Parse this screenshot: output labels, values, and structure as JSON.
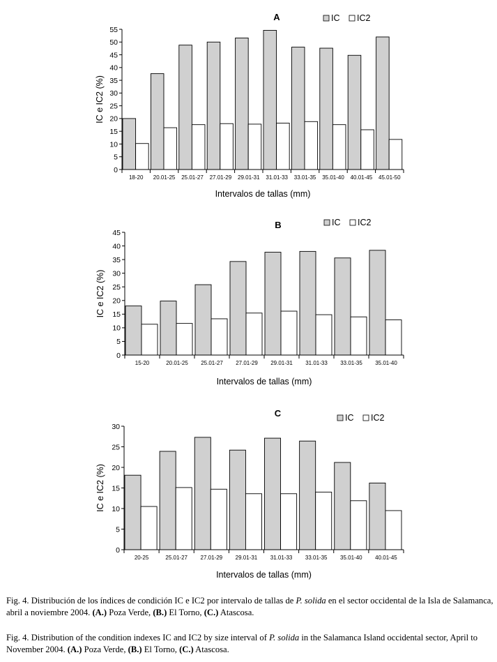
{
  "chart_data": [
    {
      "type": "bar",
      "title": "A",
      "xlabel": "Intervalos de tallas (mm)",
      "ylabel": "IC e IC2 (%)",
      "ylim": [
        0,
        55
      ],
      "ytick_step": 5,
      "grid": false,
      "legend": "top-right",
      "categories": [
        "18-20",
        "20.01-25",
        "25.01-27",
        "27.01-29",
        "29.01-31",
        "31.01-33",
        "33.01-35",
        "35.01-40",
        "40.01-45",
        "45.01-50"
      ],
      "series": [
        {
          "name": "IC",
          "color": "#d0d0d0",
          "values": [
            20,
            37.6,
            48.8,
            50,
            51.6,
            54.6,
            48,
            47.6,
            44.8,
            52
          ]
        },
        {
          "name": "IC2",
          "color": "#ffffff",
          "values": [
            10.2,
            16.4,
            17.6,
            18,
            17.8,
            18.2,
            18.8,
            17.6,
            15.6,
            11.8
          ]
        }
      ]
    },
    {
      "type": "bar",
      "title": "B",
      "xlabel": "Intervalos de tallas (mm)",
      "ylabel": "IC e IC2 (%)",
      "ylim": [
        0,
        45
      ],
      "ytick_step": 5,
      "grid": false,
      "legend": "top-right",
      "categories": [
        "15-20",
        "20.01-25",
        "25.01-27",
        "27.01-29",
        "29.01-31",
        "31.01-33",
        "33.01-35",
        "35.01-40"
      ],
      "series": [
        {
          "name": "IC",
          "color": "#d0d0d0",
          "values": [
            18,
            19.8,
            25.8,
            34.3,
            37.7,
            38,
            35.6,
            38.4
          ]
        },
        {
          "name": "IC2",
          "color": "#ffffff",
          "values": [
            11.3,
            11.6,
            13.3,
            15.4,
            16.1,
            14.8,
            14,
            12.9
          ]
        }
      ]
    },
    {
      "type": "bar",
      "title": "C",
      "xlabel": "Intervalos de tallas (mm)",
      "ylabel": "IC e IC2 (%)",
      "ylim": [
        0,
        30
      ],
      "ytick_step": 5,
      "grid": false,
      "legend": "top-right",
      "categories": [
        "20-25",
        "25.01-27",
        "27.01-29",
        "29.01-31",
        "31.01-33",
        "33.01-35",
        "35.01-40",
        "40.01-45"
      ],
      "series": [
        {
          "name": "IC",
          "color": "#d0d0d0",
          "values": [
            18.1,
            23.9,
            27.3,
            24.2,
            27.1,
            26.4,
            21.2,
            16.2
          ]
        },
        {
          "name": "IC2",
          "color": "#ffffff",
          "values": [
            10.5,
            15.1,
            14.7,
            13.6,
            13.6,
            14,
            11.9,
            9.5
          ]
        }
      ]
    }
  ],
  "caption_es": {
    "prefix": "Fig. 4. Distribución de los índices de condición IC e IC2 por intervalo de tallas de ",
    "species": "P. solida",
    "middle": " en el sector occidental de la Isla de Salamanca, abril a noviembre 2004. ",
    "a_label": "(A.)",
    "a_text": " Poza Verde, ",
    "b_label": "(B.)",
    "b_text": " El Torno, ",
    "c_label": "(C.)",
    "c_text": " Atascosa."
  },
  "caption_en": {
    "prefix": "Fig. 4. Distribution of the condition indexes IC and IC2 by size interval of ",
    "species": "P. solida",
    "middle": " in the Salamanca Island occidental sector, April to November 2004. ",
    "a_label": "(A.)",
    "a_text": " Poza Verde, ",
    "b_label": "(B.)",
    "b_text": " El Torno, ",
    "c_label": "(C.)",
    "c_text": " Atascosa."
  }
}
